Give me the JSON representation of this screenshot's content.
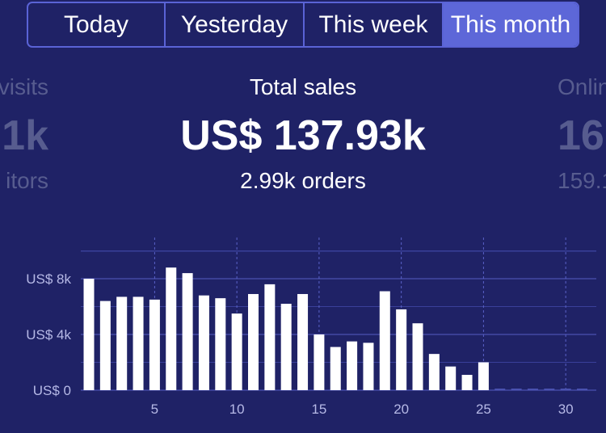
{
  "tabs": [
    {
      "label": "Today",
      "active": false
    },
    {
      "label": "Yesterday",
      "active": false
    },
    {
      "label": "This week",
      "active": false
    },
    {
      "label": "This month",
      "active": true
    }
  ],
  "stats": {
    "left": {
      "label": "visits",
      "value": "1k",
      "sub": "itors"
    },
    "center": {
      "label": "Total sales",
      "value": "US$ 137.93k",
      "sub": "2.99k orders"
    },
    "right": {
      "label": "Onlin",
      "value": "16",
      "sub": "159.1"
    }
  },
  "colors": {
    "background": "#1f2266",
    "accent": "#5d67d8",
    "bar": "#ffffff",
    "dim_text": "#575c8f",
    "axis_text": "#b6b9e6"
  },
  "chart_data": {
    "type": "bar",
    "x": [
      1,
      2,
      3,
      4,
      5,
      6,
      7,
      8,
      9,
      10,
      11,
      12,
      13,
      14,
      15,
      16,
      17,
      18,
      19,
      20,
      21,
      22,
      23,
      24,
      25,
      26,
      27,
      28,
      29,
      30,
      31
    ],
    "values": [
      8000,
      6400,
      6700,
      6700,
      6500,
      8800,
      8400,
      6800,
      6600,
      5500,
      6900,
      7600,
      6200,
      6900,
      4000,
      3100,
      3500,
      3400,
      7100,
      5800,
      4800,
      2600,
      1700,
      1100,
      2000,
      0,
      0,
      0,
      0,
      0,
      0
    ],
    "xticks": [
      "5",
      "10",
      "15",
      "20",
      "25",
      "30"
    ],
    "xtick_values": [
      5,
      10,
      15,
      20,
      25,
      30
    ],
    "yticks": [
      "US$ 0",
      "US$ 4k",
      "US$ 8k"
    ],
    "ytick_values": [
      0,
      4000,
      8000
    ],
    "ylim": [
      0,
      11000
    ],
    "grid": true
  }
}
